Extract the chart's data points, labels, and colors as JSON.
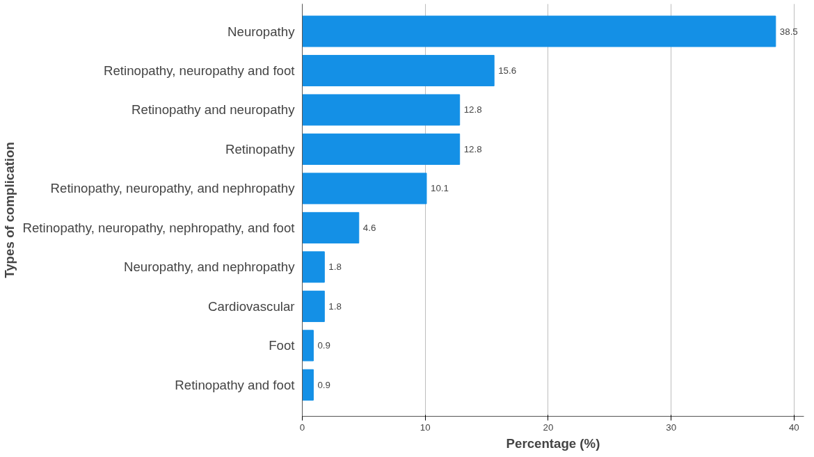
{
  "chart_data": {
    "type": "bar",
    "orientation": "horizontal",
    "xlabel": "Percentage (%)",
    "ylabel": "Types of complication",
    "categories": [
      "Neuropathy",
      "Retinopathy, neuropathy and foot",
      "Retinopathy and neuropathy",
      "Retinopathy",
      "Retinopathy, neuropathy, and nephropathy",
      "Retinopathy, neuropathy, nephropathy, and foot",
      "Neuropathy, and nephropathy",
      "Cardiovascular",
      "Foot",
      "Retinopathy and foot"
    ],
    "values": [
      38.5,
      15.6,
      12.8,
      12.8,
      10.1,
      4.6,
      1.8,
      1.8,
      0.9,
      0.9
    ],
    "color": "#1490e6",
    "xlim": [
      0,
      40.8
    ],
    "xticks": [
      0,
      10,
      20,
      30,
      40
    ],
    "grid": "x",
    "data_labels": true
  }
}
